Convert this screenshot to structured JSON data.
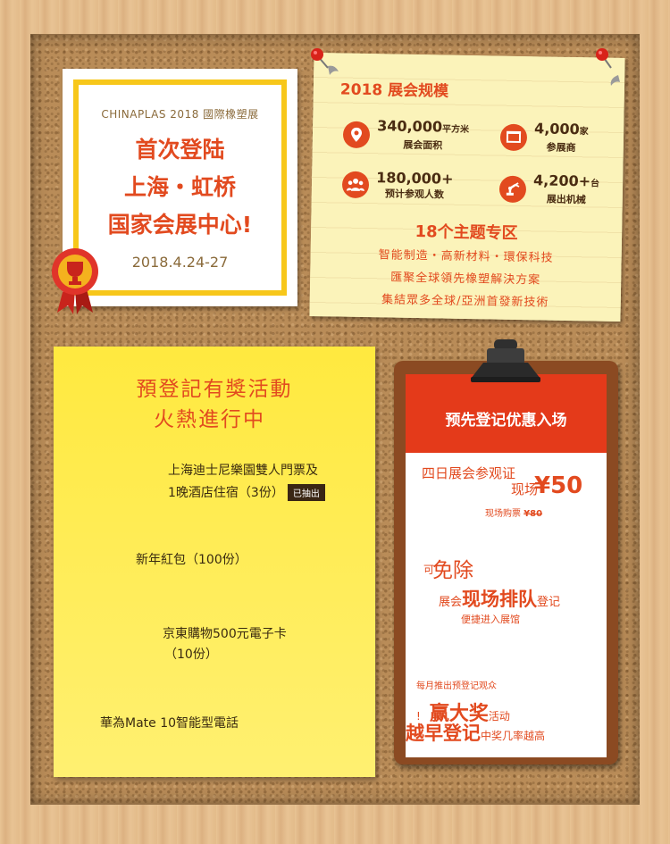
{
  "expo_card": {
    "brand": "CHINAPLAS 2018 國際橡塑展",
    "headline": [
      "首次登陆",
      "上海・虹桥",
      "国家会展中心!"
    ],
    "date": "2018.4.24-27"
  },
  "scale_note": {
    "title": "2018 展会规模",
    "stats": [
      {
        "icon": "location-pin-icon",
        "number": "340,000",
        "unit": "平方米",
        "label": "展会面积"
      },
      {
        "icon": "exhibitor-booth-icon",
        "number": "4,000",
        "unit": "家",
        "label": "参展商"
      },
      {
        "icon": "visitors-group-icon",
        "number": "180,000+",
        "unit": "",
        "label": "预计参观人数"
      },
      {
        "icon": "robot-arm-icon",
        "number": "4,200+",
        "unit": "台",
        "label": "展出机械"
      }
    ],
    "themes_title": "18个主题专区",
    "theme_lines": [
      "智能制造・高新材料・環保科技",
      "匯聚全球領先橡塑解決方案",
      "集結眾多全球/亞洲首發新技術"
    ]
  },
  "prize_note": {
    "title_lines": [
      "預登記有獎活動",
      "火熱進行中"
    ],
    "prizes": [
      {
        "lines": [
          "上海迪士尼樂園雙人門票及",
          "1晚酒店住宿（3份）"
        ],
        "badge": "已抽出"
      },
      {
        "lines": [
          "新年紅包（100份）"
        ],
        "badge": ""
      },
      {
        "lines": [
          "京東購物500元電子卡",
          "（10份）"
        ],
        "badge": ""
      },
      {
        "lines": [
          "華為Mate 10智能型電話"
        ],
        "badge": ""
      }
    ]
  },
  "clipboard": {
    "banner": "预先登记优惠入场",
    "ticket_line": "四日展会参观证",
    "price_prefix": "现场",
    "price": "¥50",
    "onsite_label": "现场购票",
    "onsite_price": "¥80",
    "free_prefix": "可",
    "free_big": "免除",
    "queue_line_a": "展会",
    "queue_big": "现场排队",
    "queue_line_b": "登记",
    "fast_entry": "便捷进入展馆",
    "monthly": "每月推出预登记观众",
    "win_prefix": "!",
    "win_big": "赢大奖",
    "win_suffix": "活动",
    "early_big": "越早登记",
    "early_suffix": "中奖几率越高"
  },
  "colors": {
    "accent_red": "#e24a1f",
    "note_yellow": "#ffe93f",
    "frame_gold": "#f7c71a",
    "cork": "#b98c58"
  }
}
